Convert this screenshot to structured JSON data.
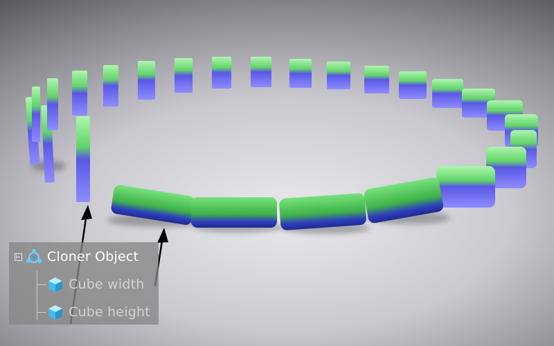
{
  "tree": {
    "root": {
      "label": "Cloner Object",
      "icon": "cloner-icon"
    },
    "children": [
      {
        "label": "Cube width",
        "icon": "cube-icon"
      },
      {
        "label": "Cube height",
        "icon": "cube-icon"
      }
    ]
  },
  "colors": {
    "cube_top": "#5fd06a",
    "cube_bottom": "#4a4ae0",
    "panel": "#878787"
  }
}
